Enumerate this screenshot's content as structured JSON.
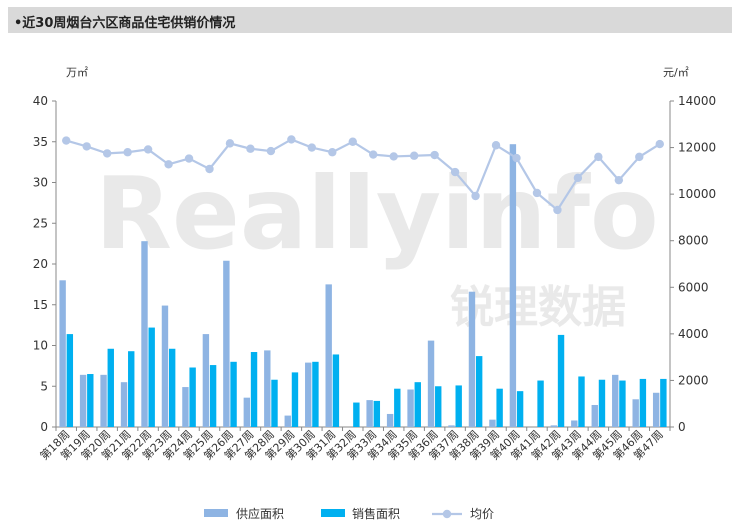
{
  "header": {
    "title": "•近30周烟台六区商品住宅供销价情况"
  },
  "watermark": {
    "text_en": "Reallyinfo",
    "text_cn": "锐理数据"
  },
  "chart_data": {
    "type": "bar",
    "title": "近30周烟台六区商品住宅供销价情况",
    "ylabel": "万㎡",
    "y2label": "元/㎡",
    "ylim": [
      0,
      40
    ],
    "y2lim": [
      0,
      14000
    ],
    "yticks": [
      0,
      5,
      10,
      15,
      20,
      25,
      30,
      35,
      40
    ],
    "y2ticks": [
      0,
      2000,
      4000,
      6000,
      8000,
      10000,
      12000,
      14000
    ],
    "categories": [
      "第18周",
      "第19周",
      "第20周",
      "第21周",
      "第22周",
      "第23周",
      "第24周",
      "第25周",
      "第26周",
      "第27周",
      "第28周",
      "第29周",
      "第30周",
      "第31周",
      "第32周",
      "第33周",
      "第34周",
      "第35周",
      "第36周",
      "第37周",
      "第38周",
      "第39周",
      "第40周",
      "第41周",
      "第42周",
      "第43周",
      "第44周",
      "第45周",
      "第46周",
      "第47周"
    ],
    "series": [
      {
        "name": "供应面积",
        "type": "bar",
        "axis": "left",
        "color": "#8eb4e3",
        "values": [
          18.0,
          6.4,
          6.4,
          5.5,
          22.8,
          14.9,
          4.9,
          11.4,
          20.4,
          3.6,
          9.4,
          1.4,
          7.9,
          17.5,
          0,
          3.3,
          1.6,
          4.6,
          10.6,
          0.2,
          16.6,
          0.9,
          34.7,
          0,
          0.2,
          0.8,
          2.7,
          6.4,
          3.4,
          4.2
        ]
      },
      {
        "name": "销售面积",
        "type": "bar",
        "axis": "left",
        "color": "#00b0f0",
        "values": [
          11.4,
          6.5,
          9.6,
          9.3,
          12.2,
          9.6,
          7.3,
          7.6,
          8.0,
          9.2,
          5.8,
          6.7,
          8.0,
          8.9,
          3.0,
          3.2,
          4.7,
          5.5,
          5.0,
          5.1,
          8.7,
          4.7,
          4.4,
          5.7,
          11.3,
          6.2,
          5.8,
          5.7,
          5.9,
          5.9
        ]
      },
      {
        "name": "均价",
        "type": "line",
        "axis": "right",
        "color": "#b4c7e7",
        "values": [
          12300,
          12050,
          11750,
          11800,
          11920,
          11280,
          11530,
          11080,
          12180,
          11950,
          11850,
          12350,
          12000,
          11800,
          12250,
          11700,
          11620,
          11650,
          11680,
          10950,
          9920,
          12100,
          11550,
          10050,
          9320,
          10700,
          11600,
          10600,
          11600,
          12150
        ]
      }
    ],
    "legend_position": "bottom"
  }
}
